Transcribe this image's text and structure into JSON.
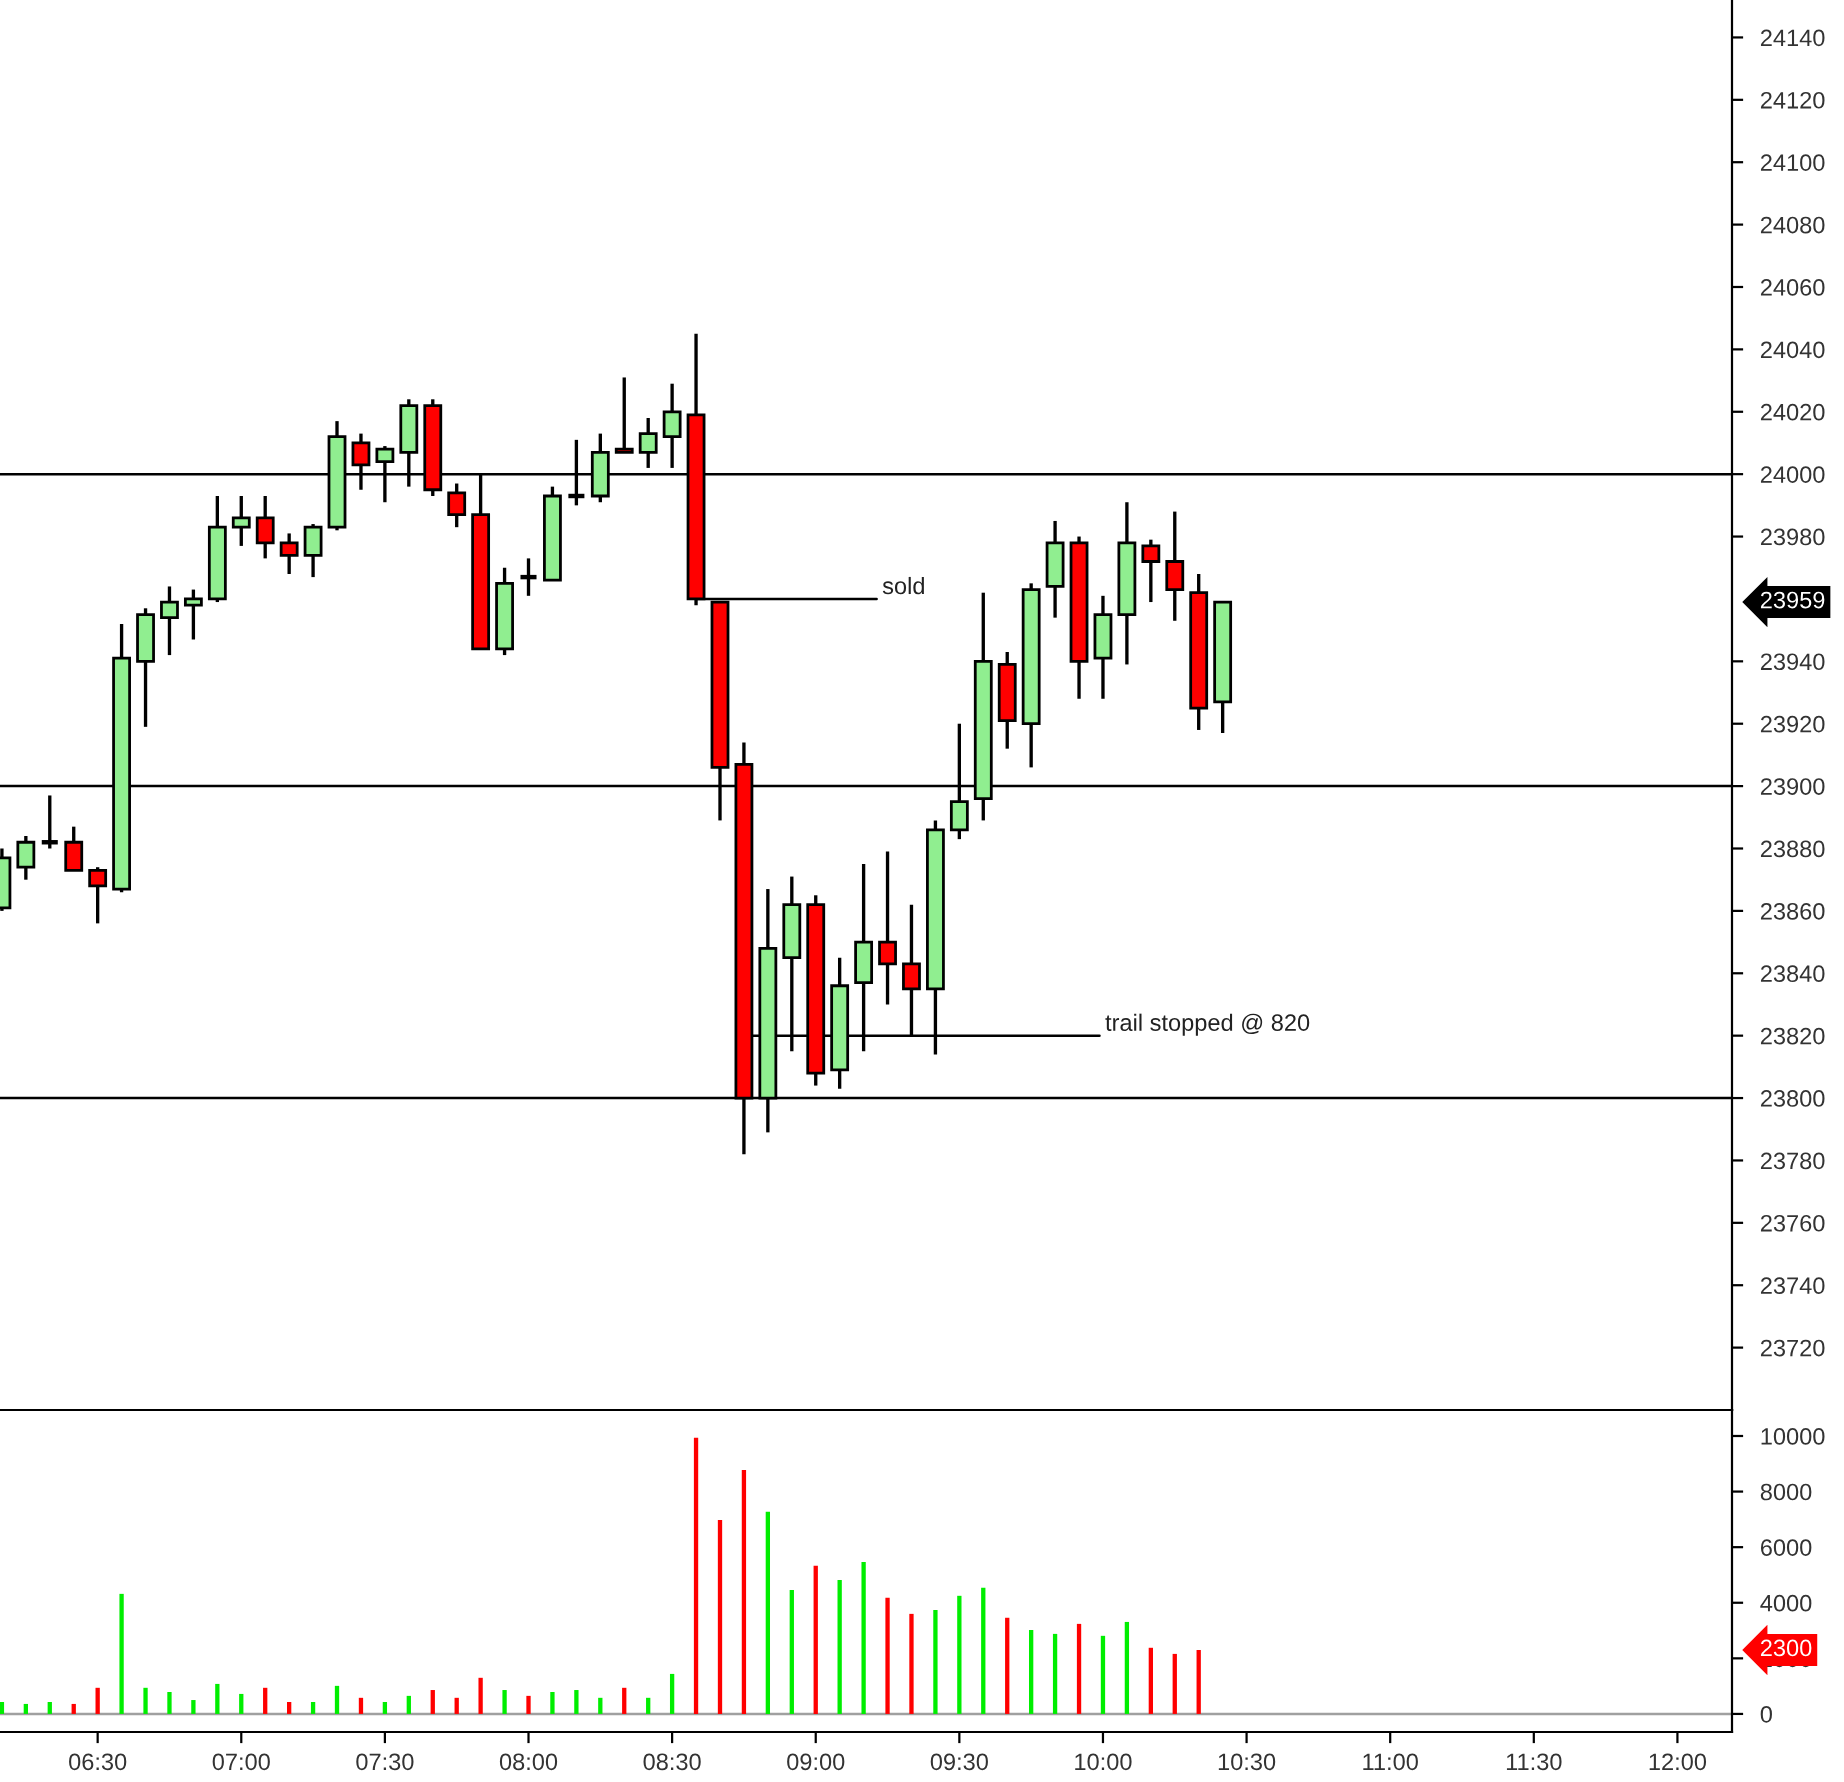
{
  "chart_data": [
    {
      "type": "candlestick",
      "x": [
        6.1667,
        6.25,
        6.3333,
        6.4167,
        6.5,
        6.5833,
        6.6667,
        6.75,
        6.8333,
        6.9167,
        7,
        7.0833,
        7.1667,
        7.25,
        7.3333,
        7.4167,
        7.5,
        7.5833,
        7.6667,
        7.75,
        7.8333,
        7.9167,
        8,
        8.0833,
        8.1667,
        8.25,
        8.3333,
        8.4167,
        8.5,
        8.5833,
        8.6667,
        8.75,
        8.8333,
        8.9167,
        9,
        9.0833,
        9.1667,
        9.25,
        9.3333,
        9.4167,
        9.5,
        9.5833,
        9.6667,
        9.75,
        9.8333,
        9.9167,
        10,
        10.0833,
        10.1667,
        10.25,
        10.3333,
        10.4167
      ],
      "ohlc": [
        [
          23861,
          23880,
          23860,
          23877
        ],
        [
          23874,
          23884,
          23870,
          23882
        ],
        [
          23882,
          23897,
          23880,
          23882
        ],
        [
          23882,
          23887,
          23873,
          23873
        ],
        [
          23873,
          23874,
          23856,
          23868
        ],
        [
          23867,
          23952,
          23866,
          23941
        ],
        [
          23940,
          23957,
          23919,
          23955
        ],
        [
          23954,
          23964,
          23942,
          23959
        ],
        [
          23958,
          23963,
          23947,
          23960
        ],
        [
          23960,
          23993,
          23959,
          23983
        ],
        [
          23983,
          23993,
          23977,
          23986
        ],
        [
          23986,
          23993,
          23973,
          23978
        ],
        [
          23978,
          23981,
          23968,
          23974
        ],
        [
          23974,
          23984,
          23967,
          23983
        ],
        [
          23983,
          24017,
          23982,
          24012
        ],
        [
          24010,
          24013,
          23995,
          24003
        ],
        [
          24004,
          24009,
          23991,
          24008
        ],
        [
          24007,
          24024,
          23996,
          24022
        ],
        [
          24022,
          24024,
          23993,
          23995
        ],
        [
          23994,
          23997,
          23983,
          23987
        ],
        [
          23987,
          24000,
          23944,
          23944
        ],
        [
          23944,
          23970,
          23942,
          23965
        ],
        [
          23967,
          23973,
          23961,
          23967
        ],
        [
          23966,
          23996,
          23966,
          23993
        ],
        [
          23993,
          24011,
          23990,
          23993
        ],
        [
          23993,
          24013,
          23991,
          24007
        ],
        [
          24008,
          24031,
          24007,
          24007
        ],
        [
          24007,
          24018,
          24002,
          24013
        ],
        [
          24012,
          24029,
          24002,
          24020
        ],
        [
          24019,
          24045,
          23958,
          23960
        ],
        [
          23959,
          23959,
          23889,
          23906
        ],
        [
          23907,
          23914,
          23782,
          23800
        ],
        [
          23800,
          23867,
          23789,
          23848
        ],
        [
          23845,
          23871,
          23815,
          23862
        ],
        [
          23862,
          23865,
          23804,
          23808
        ],
        [
          23809,
          23845,
          23803,
          23836
        ],
        [
          23837,
          23875,
          23815,
          23850
        ],
        [
          23850,
          23879,
          23830,
          23843
        ],
        [
          23843,
          23862,
          23820,
          23835
        ],
        [
          23835,
          23889,
          23814,
          23886
        ],
        [
          23886,
          23920,
          23883,
          23895
        ],
        [
          23896,
          23962,
          23889,
          23940
        ],
        [
          23939,
          23943,
          23912,
          23921
        ],
        [
          23920,
          23965,
          23906,
          23963
        ],
        [
          23964,
          23985,
          23954,
          23978
        ],
        [
          23978,
          23980,
          23928,
          23940
        ],
        [
          23941,
          23961,
          23928,
          23955
        ],
        [
          23955,
          23991,
          23939,
          23978
        ],
        [
          23977,
          23979,
          23959,
          23972
        ],
        [
          23972,
          23988,
          23953,
          23963
        ],
        [
          23962,
          23968,
          23918,
          23925
        ],
        [
          23927,
          23959,
          23917,
          23959
        ]
      ],
      "colors": [
        "#90ee90",
        "#90ee90",
        "#000000",
        "#ff0000",
        "#ff0000",
        "#90ee90",
        "#90ee90",
        "#90ee90",
        "#90ee90",
        "#90ee90",
        "#90ee90",
        "#ff0000",
        "#ff0000",
        "#90ee90",
        "#90ee90",
        "#ff0000",
        "#90ee90",
        "#90ee90",
        "#ff0000",
        "#ff0000",
        "#ff0000",
        "#90ee90",
        "#000000",
        "#90ee90",
        "#000000",
        "#90ee90",
        "#ff0000",
        "#90ee90",
        "#90ee90",
        "#ff0000",
        "#ff0000",
        "#ff0000",
        "#90ee90",
        "#90ee90",
        "#ff0000",
        "#90ee90",
        "#90ee90",
        "#ff0000",
        "#ff0000",
        "#90ee90",
        "#90ee90",
        "#90ee90",
        "#ff0000",
        "#90ee90",
        "#90ee90",
        "#ff0000",
        "#90ee90",
        "#90ee90",
        "#ff0000",
        "#ff0000",
        "#ff0000",
        "#90ee90"
      ],
      "xlim": [
        6.16,
        12.19
      ],
      "ylim": [
        23700,
        24152
      ],
      "yticks": [
        23720,
        23740,
        23760,
        23780,
        23800,
        23820,
        23840,
        23860,
        23880,
        23900,
        23920,
        23940,
        23980,
        24000,
        24020,
        24040,
        24060,
        24080,
        24100,
        24120,
        24140
      ],
      "tick_labels": "y",
      "ref_lines": [
        {
          "axis": "y",
          "value": 24000,
          "color": "#000000"
        },
        {
          "axis": "y",
          "value": 23900,
          "color": "#000000"
        },
        {
          "axis": "y",
          "value": 23800,
          "color": "#000000"
        }
      ],
      "annotations": [
        {
          "text": "sold",
          "x": 8.5833,
          "y": 23960
        },
        {
          "text": "trail stopped @ 820",
          "x": 8.75,
          "y": 23820
        },
        "23959"
      ],
      "grid": false
    },
    {
      "type": "bar",
      "x": [
        6.1667,
        6.25,
        6.3333,
        6.4167,
        6.5,
        6.5833,
        6.6667,
        6.75,
        6.8333,
        6.9167,
        7,
        7.0833,
        7.1667,
        7.25,
        7.3333,
        7.4167,
        7.5,
        7.5833,
        7.6667,
        7.75,
        7.8333,
        7.9167,
        8,
        8.0833,
        8.1667,
        8.25,
        8.3333,
        8.4167,
        8.5,
        8.5833,
        8.6667,
        8.75,
        8.8333,
        8.9167,
        9,
        9.0833,
        9.1667,
        9.25,
        9.3333,
        9.4167,
        9.5,
        9.5833,
        9.6667,
        9.75,
        9.8333,
        9.9167,
        10,
        10.0833,
        10.1667,
        10.25,
        10.3333
      ],
      "values": [
        430,
        360,
        430,
        360,
        940,
        4320,
        940,
        790,
        500,
        1080,
        720,
        940,
        430,
        430,
        1010,
        580,
        430,
        650,
        860,
        580,
        1300,
        860,
        650,
        790,
        860,
        580,
        940,
        580,
        1440,
        9940,
        6980,
        8780,
        7270,
        4460,
        5330,
        4820,
        5470,
        4180,
        3600,
        3740,
        4250,
        4540,
        3460,
        3020,
        2880,
        3240,
        2810,
        3310,
        2380,
        2160,
        2300
      ],
      "colors": [
        "#00ee00",
        "#00ee00",
        "#00ee00",
        "#ff0000",
        "#ff0000",
        "#00ee00",
        "#00ee00",
        "#00ee00",
        "#00ee00",
        "#00ee00",
        "#00ee00",
        "#ff0000",
        "#ff0000",
        "#00ee00",
        "#00ee00",
        "#ff0000",
        "#00ee00",
        "#00ee00",
        "#ff0000",
        "#ff0000",
        "#ff0000",
        "#00ee00",
        "#ff0000",
        "#00ee00",
        "#00ee00",
        "#00ee00",
        "#ff0000",
        "#00ee00",
        "#00ee00",
        "#ff0000",
        "#ff0000",
        "#ff0000",
        "#00ee00",
        "#00ee00",
        "#ff0000",
        "#00ee00",
        "#00ee00",
        "#ff0000",
        "#ff0000",
        "#00ee00",
        "#00ee00",
        "#00ee00",
        "#ff0000",
        "#00ee00",
        "#00ee00",
        "#ff0000",
        "#00ee00",
        "#00ee00",
        "#ff0000",
        "#ff0000",
        "#ff0000"
      ],
      "xlim": [
        6.16,
        12.19
      ],
      "ylim": [
        -650,
        10935
      ],
      "xticks": [
        {
          "value": 6.5,
          "label": "06:30"
        },
        {
          "value": 7,
          "label": "07:00"
        },
        {
          "value": 7.5,
          "label": "07:30"
        },
        {
          "value": 8,
          "label": "08:00"
        },
        {
          "value": 8.5,
          "label": "08:30"
        },
        {
          "value": 9,
          "label": "09:00"
        },
        {
          "value": 9.5,
          "label": "09:30"
        },
        {
          "value": 10,
          "label": "10:00"
        },
        {
          "value": 10.5,
          "label": "10:30"
        },
        {
          "value": 11,
          "label": "11:00"
        },
        {
          "value": 11.5,
          "label": "11:30"
        },
        {
          "value": 12,
          "label": "12:00"
        }
      ],
      "yticks": [
        0,
        2000,
        4000,
        6000,
        8000,
        10000
      ],
      "ref_lines": [
        {
          "axis": "y",
          "value": 0,
          "color": "#a0a0a0"
        }
      ],
      "annotations": [
        "2300"
      ],
      "grid": false
    }
  ]
}
